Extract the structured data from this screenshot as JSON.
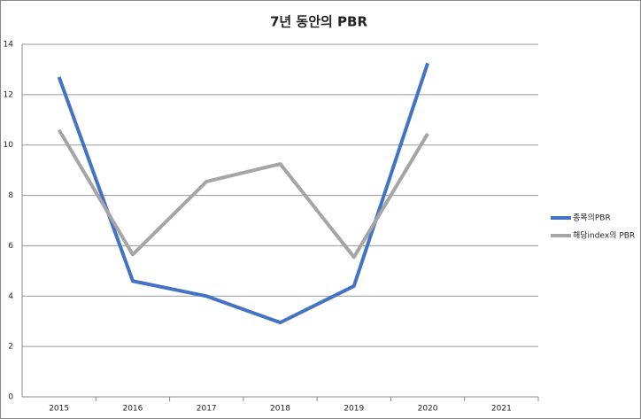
{
  "chart_data": {
    "type": "line",
    "title": "7년 동안의 PBR",
    "categories": [
      "2015",
      "2016",
      "2017",
      "2018",
      "2019",
      "2020",
      "2021"
    ],
    "series": [
      {
        "name": "종목의PBR",
        "color": "#4472c4",
        "values": [
          12.7,
          4.6,
          4.0,
          2.95,
          4.4,
          13.25,
          null
        ]
      },
      {
        "name": "해당index의 PBR",
        "color": "#a5a5a5",
        "values": [
          10.6,
          5.65,
          8.55,
          9.25,
          5.55,
          10.45,
          null
        ]
      }
    ],
    "ylim": [
      0,
      14
    ],
    "yticks": [
      0,
      2,
      4,
      6,
      8,
      10,
      12,
      14
    ],
    "grid": true
  }
}
